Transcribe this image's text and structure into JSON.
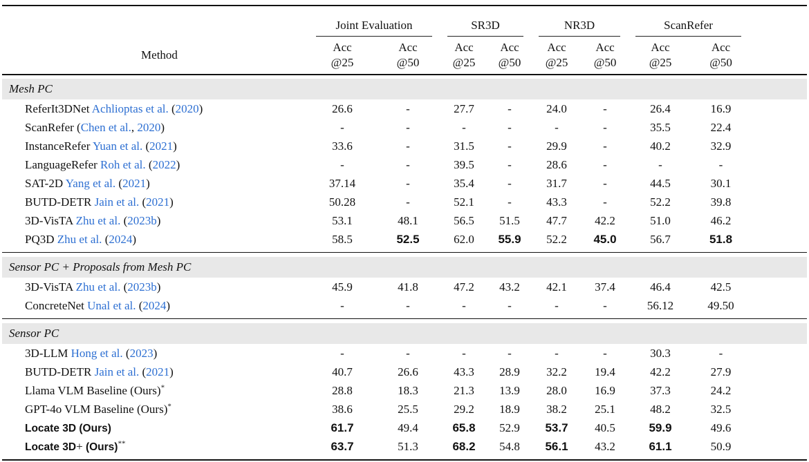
{
  "colors": {
    "link_blue": "#2d6fd2",
    "section_band": "#e8e8e8",
    "rule": "#111111",
    "text": "#111111"
  },
  "table": {
    "method_label": "Method",
    "groups": [
      {
        "label": "Joint Evaluation"
      },
      {
        "label": "SR3D"
      },
      {
        "label": "NR3D"
      },
      {
        "label": "ScanRefer"
      }
    ],
    "subheaders": [
      {
        "line1": "Acc",
        "line2": "@25"
      },
      {
        "line1": "Acc",
        "line2": "@50"
      }
    ],
    "sections": [
      {
        "title": "Mesh PC",
        "rows": [
          {
            "parts": [
              {
                "text": "ReferIt3DNet ",
                "style": "plain"
              },
              {
                "text": "Achlioptas et al.",
                "style": "link"
              },
              {
                "text": " (",
                "style": "plain"
              },
              {
                "text": "2020",
                "style": "link"
              },
              {
                "text": ")",
                "style": "plain"
              }
            ],
            "values": [
              "26.6",
              "-",
              "27.7",
              "-",
              "24.0",
              "-",
              "26.4",
              "16.9"
            ],
            "bold": []
          },
          {
            "parts": [
              {
                "text": "ScanRefer (",
                "style": "plain"
              },
              {
                "text": "Chen et al.",
                "style": "link"
              },
              {
                "text": ", ",
                "style": "plain"
              },
              {
                "text": "2020",
                "style": "link"
              },
              {
                "text": ")",
                "style": "plain"
              }
            ],
            "values": [
              "-",
              "-",
              "-",
              "-",
              "-",
              "-",
              "35.5",
              "22.4"
            ],
            "bold": []
          },
          {
            "parts": [
              {
                "text": "InstanceRefer ",
                "style": "plain"
              },
              {
                "text": "Yuan et al.",
                "style": "link"
              },
              {
                "text": " (",
                "style": "plain"
              },
              {
                "text": "2021",
                "style": "link"
              },
              {
                "text": ")",
                "style": "plain"
              }
            ],
            "values": [
              "33.6",
              "-",
              "31.5",
              "-",
              "29.9",
              "-",
              "40.2",
              "32.9"
            ],
            "bold": []
          },
          {
            "parts": [
              {
                "text": "LanguageRefer ",
                "style": "plain"
              },
              {
                "text": "Roh et al.",
                "style": "link"
              },
              {
                "text": " (",
                "style": "plain"
              },
              {
                "text": "2022",
                "style": "link"
              },
              {
                "text": ")",
                "style": "plain"
              }
            ],
            "values": [
              "-",
              "-",
              "39.5",
              "-",
              "28.6",
              "-",
              "-",
              "-"
            ],
            "bold": []
          },
          {
            "parts": [
              {
                "text": "SAT-2D ",
                "style": "plain"
              },
              {
                "text": "Yang et al.",
                "style": "link"
              },
              {
                "text": " (",
                "style": "plain"
              },
              {
                "text": "2021",
                "style": "link"
              },
              {
                "text": ")",
                "style": "plain"
              }
            ],
            "values": [
              "37.14",
              "-",
              "35.4",
              "-",
              "31.7",
              "-",
              "44.5",
              "30.1"
            ],
            "bold": []
          },
          {
            "parts": [
              {
                "text": "BUTD-DETR ",
                "style": "plain"
              },
              {
                "text": "Jain et al.",
                "style": "link"
              },
              {
                "text": " (",
                "style": "plain"
              },
              {
                "text": "2021",
                "style": "link"
              },
              {
                "text": ")",
                "style": "plain"
              }
            ],
            "values": [
              "50.28",
              "-",
              "52.1",
              "-",
              "43.3",
              "-",
              "52.2",
              "39.8"
            ],
            "bold": []
          },
          {
            "parts": [
              {
                "text": "3D-VisTA ",
                "style": "plain"
              },
              {
                "text": "Zhu et al.",
                "style": "link"
              },
              {
                "text": " (",
                "style": "plain"
              },
              {
                "text": "2023b",
                "style": "link"
              },
              {
                "text": ")",
                "style": "plain"
              }
            ],
            "values": [
              "53.1",
              "48.1",
              "56.5",
              "51.5",
              "47.7",
              "42.2",
              "51.0",
              "46.2"
            ],
            "bold": []
          },
          {
            "parts": [
              {
                "text": "PQ3D ",
                "style": "plain"
              },
              {
                "text": "Zhu et al.",
                "style": "link"
              },
              {
                "text": " (",
                "style": "plain"
              },
              {
                "text": "2024",
                "style": "link"
              },
              {
                "text": ")",
                "style": "plain"
              }
            ],
            "values": [
              "58.5",
              "52.5",
              "62.0",
              "55.9",
              "52.2",
              "45.0",
              "56.7",
              "51.8"
            ],
            "bold": [
              1,
              3,
              5,
              7
            ]
          }
        ]
      },
      {
        "title": "Sensor PC + Proposals from Mesh PC",
        "rows": [
          {
            "parts": [
              {
                "text": "3D-VisTA ",
                "style": "plain"
              },
              {
                "text": "Zhu et al.",
                "style": "link"
              },
              {
                "text": " (",
                "style": "plain"
              },
              {
                "text": "2023b",
                "style": "link"
              },
              {
                "text": ")",
                "style": "plain"
              }
            ],
            "values": [
              "45.9",
              "41.8",
              "47.2",
              "43.2",
              "42.1",
              "37.4",
              "46.4",
              "42.5"
            ],
            "bold": []
          },
          {
            "parts": [
              {
                "text": "ConcreteNet ",
                "style": "plain"
              },
              {
                "text": "Unal et al.",
                "style": "link"
              },
              {
                "text": " (",
                "style": "plain"
              },
              {
                "text": "2024",
                "style": "link"
              },
              {
                "text": ")",
                "style": "plain"
              }
            ],
            "values": [
              "-",
              "-",
              "-",
              "-",
              "-",
              "-",
              "56.12",
              "49.50"
            ],
            "bold": []
          }
        ]
      },
      {
        "title": "Sensor PC",
        "rows": [
          {
            "parts": [
              {
                "text": "3D-LLM ",
                "style": "plain"
              },
              {
                "text": "Hong et al.",
                "style": "link"
              },
              {
                "text": " (",
                "style": "plain"
              },
              {
                "text": "2023",
                "style": "link"
              },
              {
                "text": ")",
                "style": "plain"
              }
            ],
            "values": [
              "-",
              "-",
              "-",
              "-",
              "-",
              "-",
              "30.3",
              "-"
            ],
            "bold": []
          },
          {
            "parts": [
              {
                "text": "BUTD-DETR ",
                "style": "plain"
              },
              {
                "text": "Jain et al.",
                "style": "link"
              },
              {
                "text": " (",
                "style": "plain"
              },
              {
                "text": "2021",
                "style": "link"
              },
              {
                "text": ")",
                "style": "plain"
              }
            ],
            "values": [
              "40.7",
              "26.6",
              "43.3",
              "28.9",
              "32.2",
              "19.4",
              "42.2",
              "27.9"
            ],
            "bold": []
          },
          {
            "parts": [
              {
                "text": "Llama VLM Baseline (Ours)",
                "style": "plain"
              },
              {
                "text": "*",
                "style": "sup"
              }
            ],
            "values": [
              "28.8",
              "18.3",
              "21.3",
              "13.9",
              "28.0",
              "16.9",
              "37.3",
              "24.2"
            ],
            "bold": []
          },
          {
            "parts": [
              {
                "text": "GPT-4o VLM Baseline (Ours)",
                "style": "plain"
              },
              {
                "text": "*",
                "style": "sup"
              }
            ],
            "values": [
              "38.6",
              "25.5",
              "29.2",
              "18.9",
              "38.2",
              "25.1",
              "48.2",
              "32.5"
            ],
            "bold": []
          },
          {
            "parts": [
              {
                "text": "Locate 3D (Ours)",
                "style": "brand"
              }
            ],
            "values": [
              "61.7",
              "49.4",
              "65.8",
              "52.9",
              "53.7",
              "40.5",
              "59.9",
              "49.6"
            ],
            "bold": [
              0,
              2,
              4,
              6
            ]
          },
          {
            "parts": [
              {
                "text": "Locate 3D",
                "style": "brand"
              },
              {
                "text": "+",
                "style": "plus"
              },
              {
                "text": " ",
                "style": "plain"
              },
              {
                "text": "(Ours)",
                "style": "brand"
              },
              {
                "text": "**",
                "style": "sup"
              }
            ],
            "values": [
              "63.7",
              "51.3",
              "68.2",
              "54.8",
              "56.1",
              "43.2",
              "61.1",
              "50.9"
            ],
            "bold": [
              0,
              2,
              4,
              6
            ]
          }
        ]
      }
    ]
  }
}
